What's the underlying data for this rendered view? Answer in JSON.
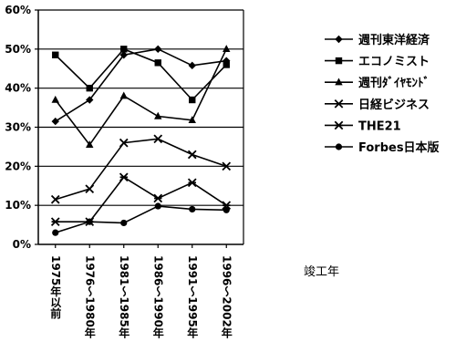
{
  "chart_data": {
    "type": "line",
    "title": "",
    "xlabel": "竣工年",
    "ylabel": "",
    "ylim": [
      0,
      60
    ],
    "y_ticks": [
      "0%",
      "10%",
      "20%",
      "30%",
      "40%",
      "50%",
      "60%"
    ],
    "categories": [
      "1975年以前",
      "1976～1980年",
      "1981～1985年",
      "1986～1990年",
      "1991～1995年",
      "1996～2002年"
    ],
    "grid": "horizontal",
    "legend_position": "right",
    "series": [
      {
        "name": "週刊東洋経済",
        "marker": "diamond",
        "values": [
          31.5,
          37,
          48.5,
          50,
          45.8,
          47
        ]
      },
      {
        "name": "エコノミスト",
        "marker": "square",
        "values": [
          48.5,
          40,
          50,
          46.5,
          37,
          46
        ]
      },
      {
        "name": "週刊ﾀﾞｲﾔﾓﾝﾄﾞ",
        "marker": "triangle",
        "values": [
          37,
          25.5,
          38,
          32.8,
          31.8,
          50
        ]
      },
      {
        "name": "日経ビジネス",
        "marker": "x",
        "values": [
          11.5,
          14.2,
          26,
          27,
          23,
          20
        ]
      },
      {
        "name": "THE21",
        "marker": "asterisk",
        "values": [
          5.8,
          5.8,
          17.2,
          11.8,
          15.8,
          10
        ]
      },
      {
        "name": "Forbes日本版",
        "marker": "circle",
        "values": [
          3,
          5.8,
          5.5,
          9.8,
          9,
          8.8
        ]
      }
    ]
  }
}
